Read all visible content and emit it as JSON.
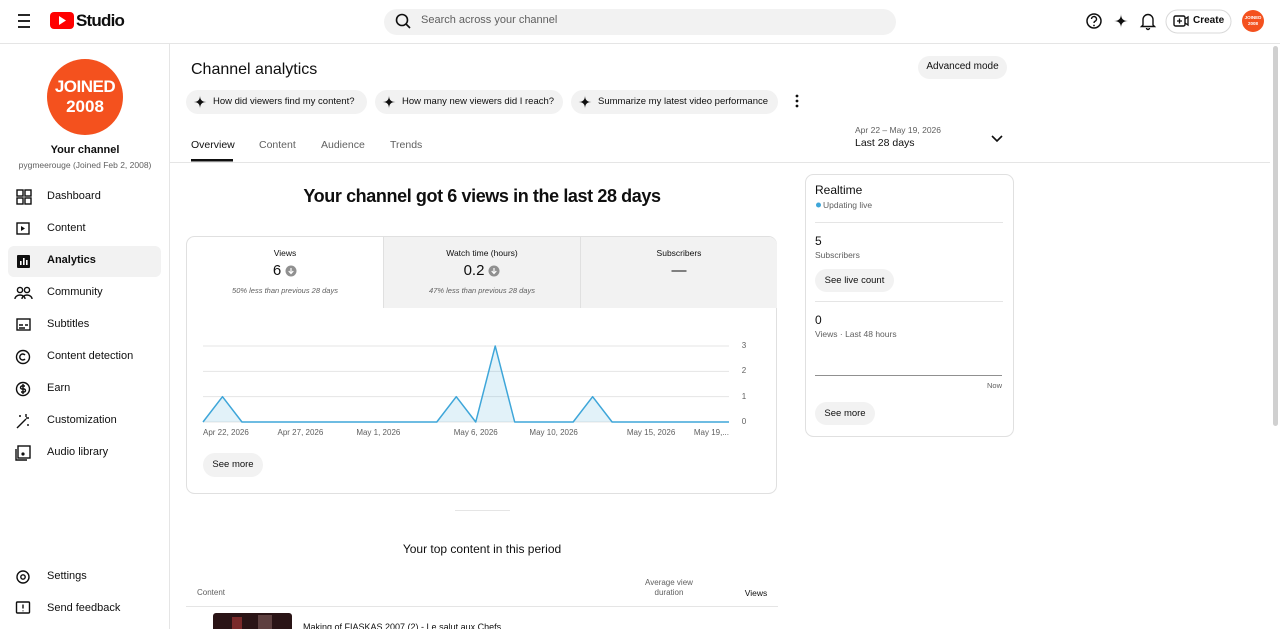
{
  "header": {
    "logo": "Studio",
    "search_placeholder": "Search across your channel",
    "create": "Create"
  },
  "avatar": [
    "JOINED",
    "2008"
  ],
  "sidebar": {
    "channel_title": "Your channel",
    "channel_subtitle": "pygmeerouge (Joined Feb 2, 2008)",
    "nav": [
      "Dashboard",
      "Content",
      "Analytics",
      "Community",
      "Subtitles",
      "Content detection",
      "Earn",
      "Customization",
      "Audio library"
    ],
    "active": "Analytics",
    "footer": [
      "Settings",
      "Send feedback"
    ]
  },
  "page": {
    "title": "Channel analytics",
    "advanced_mode": "Advanced mode",
    "prompts": [
      "How did viewers find my content?",
      "How many new viewers did I reach?",
      "Summarize my latest video performance"
    ],
    "tabs": [
      "Overview",
      "Content",
      "Audience",
      "Trends"
    ],
    "date_range": "Apr 22 – May 19, 2026",
    "period": "Last 28 days",
    "headline": "Your channel got 6 views in the last 28 days",
    "metrics": [
      {
        "label": "Views",
        "value": "6",
        "change": "50% less than previous 28 days"
      },
      {
        "label": "Watch time (hours)",
        "value": "0.2",
        "change": "47% less than previous 28 days"
      },
      {
        "label": "Subscribers",
        "value": "—"
      }
    ],
    "see_more": "See more",
    "top_content": {
      "title": "Your top content in this period",
      "columns": [
        "Content",
        "Average view duration",
        "Views"
      ],
      "rows": [
        [
          "Making of FIASKAS 2007 (2) - Le salut aux Chefs"
        ]
      ]
    }
  },
  "realtime": {
    "title": "Realtime",
    "status": "Updating live",
    "subscribers": "5",
    "subscribers_label": "Subscribers",
    "live_count_button": "See live count",
    "views": "0",
    "views_label": "Views · Last 48 hours",
    "now": "Now",
    "see_more": "See more"
  },
  "chart_data": {
    "type": "line",
    "categories": [
      "Apr 22, 2026",
      null,
      null,
      null,
      null,
      "Apr 27, 2026",
      null,
      null,
      null,
      "May 1, 2026",
      null,
      null,
      null,
      null,
      "May 6, 2026",
      null,
      null,
      null,
      "May 10, 2026",
      null,
      null,
      null,
      null,
      "May 15, 2026",
      null,
      null,
      null,
      "May 19,..."
    ],
    "values": [
      0,
      1,
      0,
      0,
      0,
      0,
      0,
      0,
      0,
      0,
      0,
      0,
      0,
      1,
      0,
      3,
      0,
      0,
      0,
      0,
      1,
      0,
      0,
      0,
      0,
      0,
      0,
      0
    ],
    "color": "#3ea6d9",
    "ylim": [
      0,
      3
    ],
    "yticks": [
      0,
      1,
      2,
      3
    ],
    "grid": true
  }
}
